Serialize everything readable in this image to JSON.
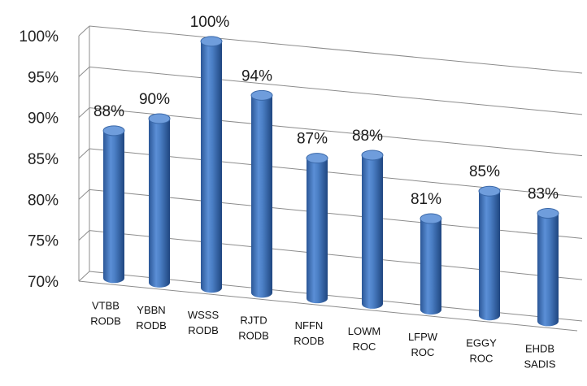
{
  "chart_data": {
    "type": "bar",
    "style": "3d-cylinder",
    "categories": [
      [
        "VTBB",
        "RODB"
      ],
      [
        "YBBN",
        "RODB"
      ],
      [
        "WSSS",
        "RODB"
      ],
      [
        "RJTD",
        "RODB"
      ],
      [
        "NFFN",
        "RODB"
      ],
      [
        "LOWM",
        "ROC"
      ],
      [
        "LFPW",
        "ROC"
      ],
      [
        "EGGY",
        "ROC"
      ],
      [
        "EHDB",
        "SADIS"
      ]
    ],
    "values": [
      88,
      90,
      100,
      94,
      87,
      88,
      81,
      85,
      83
    ],
    "data_labels": [
      "88%",
      "90%",
      "100%",
      "94%",
      "87%",
      "88%",
      "81%",
      "85%",
      "83%"
    ],
    "ylim": [
      70,
      100
    ],
    "yticks": [
      "70%",
      "75%",
      "80%",
      "85%",
      "90%",
      "95%",
      "100%"
    ],
    "title": "",
    "xlabel": "",
    "ylabel": "",
    "grid": true,
    "bar_color": "#4a7ec4"
  }
}
